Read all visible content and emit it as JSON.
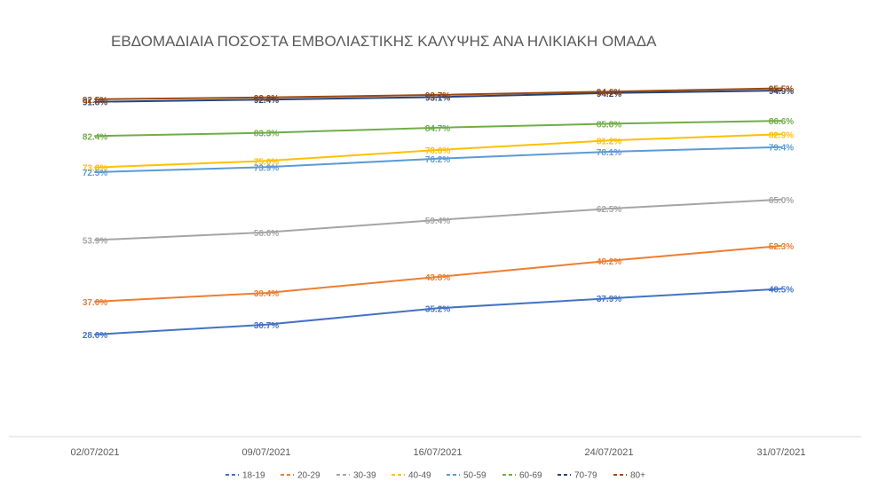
{
  "chart_data": {
    "type": "line",
    "title": "ΕΒΔΟΜΑΔΙΑΙΑ ΠΟΣΟΣΤΑ ΕΜΒΟΛΙΑΣΤΙΚΗΣ ΚΑΛΥΨΗΣ ΑΝΑ ΗΛΙΚΙΑΚΗ ΟΜΑΔΑ",
    "xlabel": "",
    "ylabel": "",
    "ylim": [
      0,
      100
    ],
    "y_axis_visible": false,
    "grid": false,
    "legend": "bottom",
    "categories": [
      "02/07/2021",
      "09/07/2021",
      "16/07/2021",
      "24/07/2021",
      "31/07/2021"
    ],
    "series": [
      {
        "name": "18-19",
        "color": "#4472C4",
        "values": [
          28.0,
          30.7,
          35.2,
          37.9,
          40.5
        ],
        "labels": [
          "28.0%",
          "30.7%",
          "35.2%",
          "37.9%",
          "40.5%"
        ]
      },
      {
        "name": "20-29",
        "color": "#ED7D31",
        "values": [
          37.0,
          39.4,
          43.8,
          48.2,
          52.3
        ],
        "labels": [
          "37.0%",
          "39.4%",
          "43.8%",
          "48.2%",
          "52.3%"
        ]
      },
      {
        "name": "30-39",
        "color": "#A5A5A5",
        "values": [
          53.9,
          56.0,
          59.4,
          62.5,
          65.0
        ],
        "labels": [
          "53.9%",
          "56.0%",
          "59.4%",
          "62.5%",
          "65.0%"
        ]
      },
      {
        "name": "40-49",
        "color": "#FFC000",
        "values": [
          73.8,
          75.6,
          78.6,
          81.2,
          82.9
        ],
        "labels": [
          "73.8%",
          "75.6%",
          "78.6%",
          "81.2%",
          "82.9%"
        ]
      },
      {
        "name": "50-59",
        "color": "#5B9BD5",
        "values": [
          72.5,
          73.9,
          76.2,
          78.1,
          79.4
        ],
        "labels": [
          "72.5%",
          "73.9%",
          "76.2%",
          "78.1%",
          "79.4%"
        ]
      },
      {
        "name": "60-69",
        "color": "#70AD47",
        "values": [
          82.4,
          83.3,
          84.7,
          85.8,
          86.6
        ],
        "labels": [
          "82.4%",
          "83.3%",
          "84.7%",
          "85.8%",
          "86.6%"
        ]
      },
      {
        "name": "70-79",
        "color": "#264478",
        "values": [
          91.8,
          92.4,
          93.1,
          94.2,
          94.9
        ],
        "labels": [
          "91.8%",
          "92.4%",
          "93.1%",
          "94.2%",
          "94.9%"
        ]
      },
      {
        "name": "80+",
        "color": "#9E480E",
        "values": [
          92.5,
          93.0,
          93.7,
          94.6,
          95.5
        ],
        "labels": [
          "92.5%",
          "93.0%",
          "93.7%",
          "94.6%",
          "95.5%"
        ]
      }
    ]
  }
}
